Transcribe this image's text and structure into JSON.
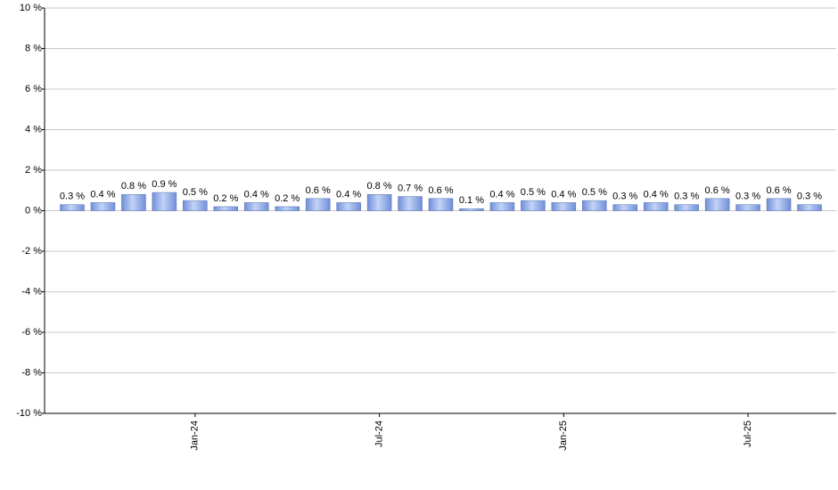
{
  "chart_data": {
    "type": "bar",
    "categories": [
      null,
      null,
      null,
      null,
      "Jan-24",
      null,
      null,
      null,
      null,
      null,
      "Jul-24",
      null,
      null,
      null,
      null,
      null,
      "Jan-25",
      null,
      null,
      null,
      null,
      null,
      "Jul-25",
      null,
      null
    ],
    "values": [
      0.3,
      0.4,
      0.8,
      0.9,
      0.5,
      0.2,
      0.4,
      0.2,
      0.6,
      0.4,
      0.8,
      0.7,
      0.6,
      0.1,
      0.4,
      0.5,
      0.4,
      0.5,
      0.3,
      0.4,
      0.3,
      0.6,
      0.3,
      0.6,
      0.3
    ],
    "value_labels": [
      "0.3 %",
      "0.4 %",
      "0.8 %",
      "0.9 %",
      "0.5 %",
      "0.2 %",
      "0.4 %",
      "0.2 %",
      "0.6 %",
      "0.4 %",
      "0.8 %",
      "0.7 %",
      "0.6 %",
      "0.1 %",
      "0.4 %",
      "0.5 %",
      "0.4 %",
      "0.5 %",
      "0.3 %",
      "0.4 %",
      "0.3 %",
      "0.6 %",
      "0.3 %",
      "0.6 %",
      "0.3 %"
    ],
    "color": "#6f8fd8",
    "ylim": [
      -10,
      10
    ],
    "yticks": [
      {
        "value": -10,
        "label": "-10 %"
      },
      {
        "value": -8,
        "label": "-8 %"
      },
      {
        "value": -6,
        "label": "-6 %"
      },
      {
        "value": -4,
        "label": "-4 %"
      },
      {
        "value": -2,
        "label": "-2 %"
      },
      {
        "value": 0,
        "label": "0 %"
      },
      {
        "value": 2,
        "label": "2 %"
      },
      {
        "value": 4,
        "label": "4 %"
      },
      {
        "value": 6,
        "label": "6 %"
      },
      {
        "value": 8,
        "label": "8 %"
      },
      {
        "value": 10,
        "label": "10 %"
      }
    ],
    "grid": true
  }
}
